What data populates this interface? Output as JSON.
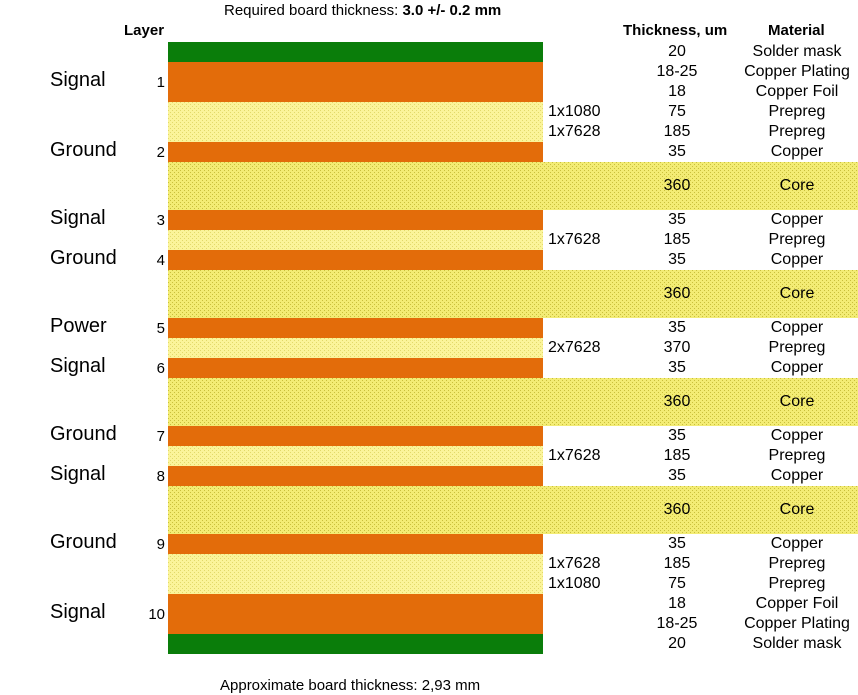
{
  "title": {
    "prefix": "Required board thickness: ",
    "value": "3.0 +/- 0.2 mm"
  },
  "headers": {
    "layer": "Layer",
    "thickness": "Thickness, um",
    "material": "Material"
  },
  "footer": "Approximate board thickness: 2,93 mm",
  "colors": {
    "solder_mask": "#0a7d0a",
    "copper": "#e36c0a",
    "prepreg": "#fbf49a",
    "core": "#f3ec74"
  },
  "layers": [
    {
      "num": "1",
      "name": "Signal"
    },
    {
      "num": "2",
      "name": "Ground"
    },
    {
      "num": "3",
      "name": "Signal"
    },
    {
      "num": "4",
      "name": "Ground"
    },
    {
      "num": "5",
      "name": "Power"
    },
    {
      "num": "6",
      "name": "Signal"
    },
    {
      "num": "7",
      "name": "Ground"
    },
    {
      "num": "8",
      "name": "Signal"
    },
    {
      "num": "9",
      "name": "Ground"
    },
    {
      "num": "10",
      "name": "Signal"
    }
  ],
  "stack": [
    {
      "kind": "solder_mask",
      "rows": [
        {
          "thk": "20",
          "mat": "Solder mask"
        }
      ]
    },
    {
      "kind": "copper",
      "layer": 1,
      "rows": [
        {
          "thk": "18-25",
          "mat": "Copper Plating"
        },
        {
          "thk": "18",
          "mat": "Copper Foil"
        }
      ]
    },
    {
      "kind": "prepreg",
      "rows": [
        {
          "ply": "1x1080",
          "thk": "75",
          "mat": "Prepreg"
        },
        {
          "ply": "1x7628",
          "thk": "185",
          "mat": "Prepreg"
        }
      ]
    },
    {
      "kind": "copper",
      "layer": 2,
      "rows": [
        {
          "thk": "35",
          "mat": "Copper"
        }
      ]
    },
    {
      "kind": "core",
      "rows": [
        {
          "thk": "360",
          "mat": "Core"
        }
      ]
    },
    {
      "kind": "copper",
      "layer": 3,
      "rows": [
        {
          "thk": "35",
          "mat": "Copper"
        }
      ]
    },
    {
      "kind": "prepreg",
      "rows": [
        {
          "ply": "1x7628",
          "thk": "185",
          "mat": "Prepreg"
        }
      ]
    },
    {
      "kind": "copper",
      "layer": 4,
      "rows": [
        {
          "thk": "35",
          "mat": "Copper"
        }
      ]
    },
    {
      "kind": "core",
      "rows": [
        {
          "thk": "360",
          "mat": "Core"
        }
      ]
    },
    {
      "kind": "copper",
      "layer": 5,
      "rows": [
        {
          "thk": "35",
          "mat": "Copper"
        }
      ]
    },
    {
      "kind": "prepreg",
      "rows": [
        {
          "ply": "2x7628",
          "thk": "370",
          "mat": "Prepreg"
        }
      ]
    },
    {
      "kind": "copper",
      "layer": 6,
      "rows": [
        {
          "thk": "35",
          "mat": "Copper"
        }
      ]
    },
    {
      "kind": "core",
      "rows": [
        {
          "thk": "360",
          "mat": "Core"
        }
      ]
    },
    {
      "kind": "copper",
      "layer": 7,
      "rows": [
        {
          "thk": "35",
          "mat": "Copper"
        }
      ]
    },
    {
      "kind": "prepreg",
      "rows": [
        {
          "ply": "1x7628",
          "thk": "185",
          "mat": "Prepreg"
        }
      ]
    },
    {
      "kind": "copper",
      "layer": 8,
      "rows": [
        {
          "thk": "35",
          "mat": "Copper"
        }
      ]
    },
    {
      "kind": "core",
      "rows": [
        {
          "thk": "360",
          "mat": "Core"
        }
      ]
    },
    {
      "kind": "copper",
      "layer": 9,
      "rows": [
        {
          "thk": "35",
          "mat": "Copper"
        }
      ]
    },
    {
      "kind": "prepreg",
      "rows": [
        {
          "ply": "1x7628",
          "thk": "185",
          "mat": "Prepreg"
        },
        {
          "ply": "1x1080",
          "thk": "75",
          "mat": "Prepreg"
        }
      ]
    },
    {
      "kind": "copper",
      "layer": 10,
      "rows": [
        {
          "thk": "18",
          "mat": "Copper Foil"
        },
        {
          "thk": "18-25",
          "mat": "Copper Plating"
        }
      ]
    },
    {
      "kind": "solder_mask",
      "rows": [
        {
          "thk": "20",
          "mat": "Solder mask"
        }
      ]
    }
  ]
}
